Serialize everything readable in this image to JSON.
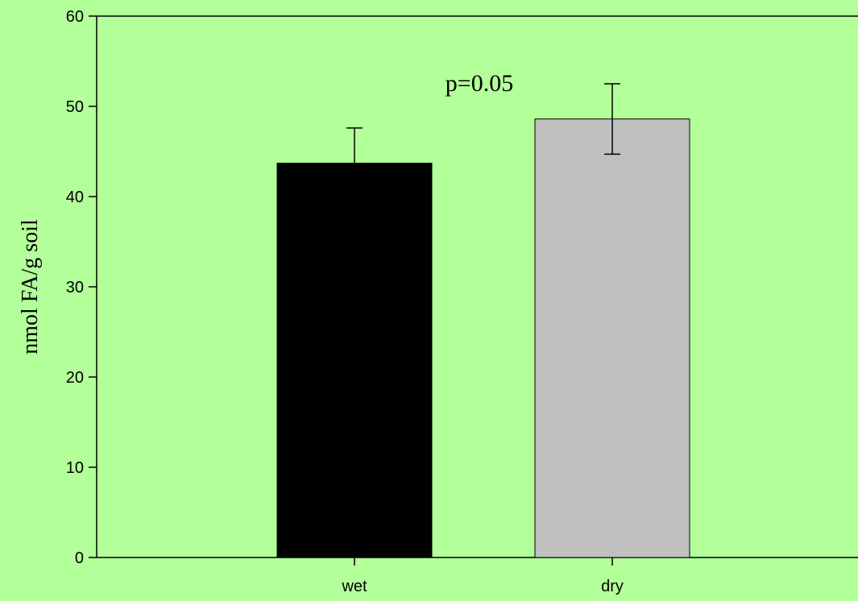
{
  "chart_data": {
    "type": "bar",
    "title": "",
    "xlabel": "",
    "ylabel": "nmol FA/g soil",
    "ylim": [
      0,
      60
    ],
    "yticks": [
      0,
      10,
      20,
      30,
      40,
      50,
      60
    ],
    "categories": [
      "wet",
      "dry"
    ],
    "values": [
      43.7,
      48.6
    ],
    "errors": [
      3.9,
      3.9
    ],
    "bar_colors": [
      "#000000",
      "#c0c0c0"
    ],
    "annotation": "p=0.05",
    "grid": false,
    "legend": "none"
  },
  "colors": {
    "background": "#b3ff99",
    "axis": "#000000"
  }
}
